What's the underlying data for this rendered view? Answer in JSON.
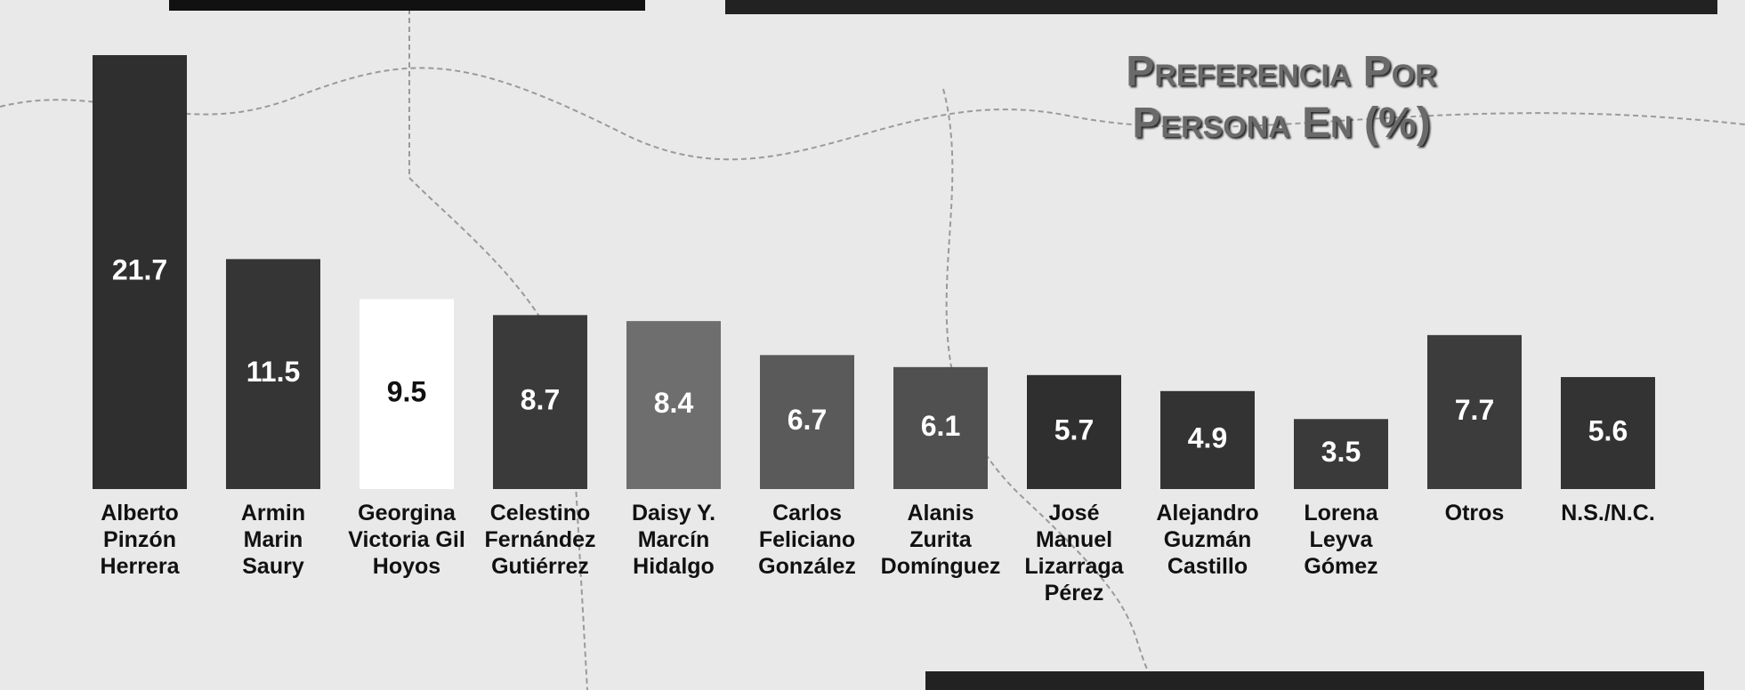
{
  "chart_data": {
    "type": "bar",
    "title": "Preferencia Por Persona En (%)",
    "categories": [
      "Alberto Pinzón Herrera",
      "Armin Marin Saury",
      "Georgina Victoria Gil Hoyos",
      "Celestino Fernández Gutiérrez",
      "Daisy Y. Marcín Hidalgo",
      "Carlos Feliciano González",
      "Alanis Zurita Domínguez",
      "José Manuel Lizarraga Pérez",
      "Alejandro Guzmán Castillo",
      "Lorena Leyva Gómez",
      "Otros",
      "N.S./N.C."
    ],
    "values": [
      21.7,
      11.5,
      9.5,
      8.7,
      8.4,
      6.7,
      6.1,
      5.7,
      4.9,
      3.5,
      7.7,
      5.6
    ],
    "colors": [
      "#2f2f2f",
      "#353535",
      "#ffffff",
      "#3a3a3a",
      "#6e6e6e",
      "#5a5a5a",
      "#505050",
      "#2f2f2f",
      "#333333",
      "#3a3a3a",
      "#3c3c3c",
      "#333333"
    ]
  }
}
